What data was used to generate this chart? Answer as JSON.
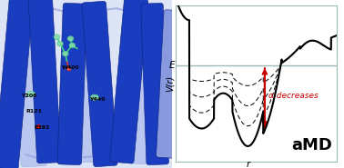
{
  "background_color": "#ffffff",
  "border_color": "#99bbbb",
  "E_line_color": "#99bbbb",
  "curve_color": "#000000",
  "arrow_color": "#cc0000",
  "alpha_label": "α decreases",
  "E_label": "E",
  "amd_label": "aMD",
  "ylabel": "V(r)",
  "xlabel": "r",
  "helix_dark": "#1a3dbf",
  "helix_mid": "#2244cc",
  "helix_light": "#8899dd",
  "helix_vlight": "#aabbee",
  "bg_color": "#dde4f5",
  "ligand_green": "#88ddaa",
  "ligand_green2": "#44cc88",
  "ligand_red": "#cc3333"
}
